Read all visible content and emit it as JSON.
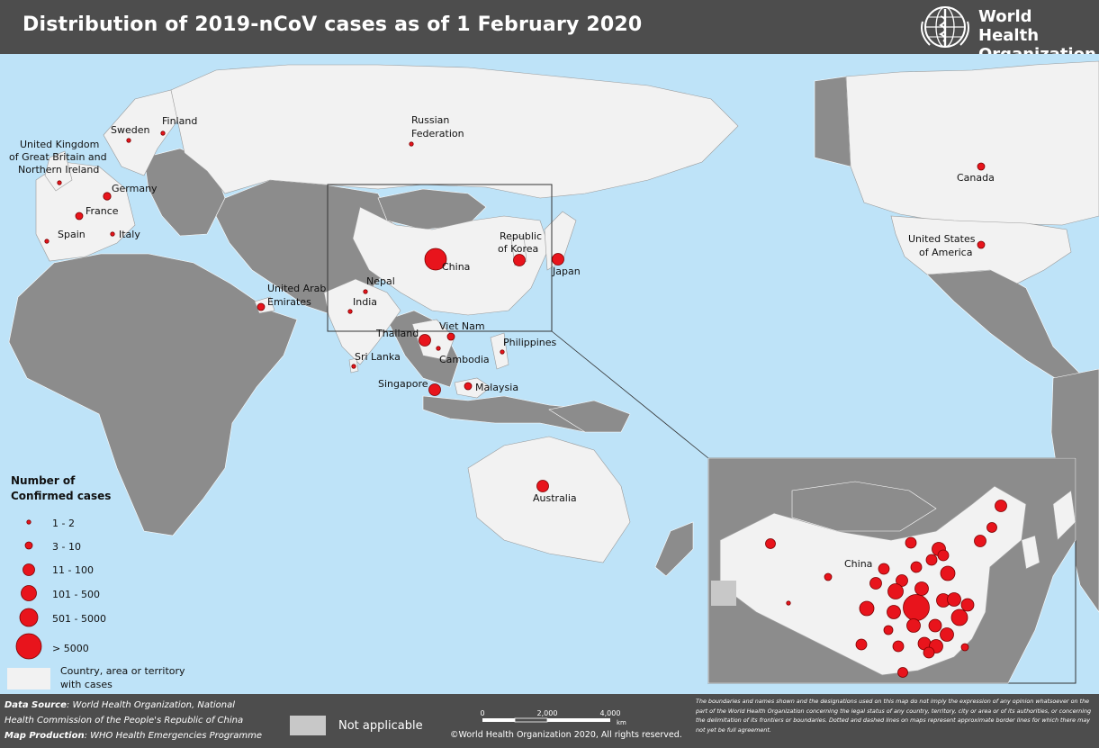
{
  "header": {
    "title": "Distribution of 2019-nCoV cases as of 1 February 2020",
    "org_line1": "World Health",
    "org_line2": "Organization"
  },
  "colors": {
    "ocean": "#bee3f8",
    "cases": "#f2f2f2",
    "no_cases": "#8c8c8c",
    "not_applicable": "#c8c8c8",
    "marker": "#e8141c",
    "header_bg": "#4d4d4d"
  },
  "icons": {
    "logo": "who-emblem-icon",
    "marker": "red-circle-icon"
  },
  "countries": [
    {
      "name": "Finland"
    },
    {
      "name": "Sweden"
    },
    {
      "name": "Russian"
    },
    {
      "name": "Federation"
    },
    {
      "name": "United Kingdom"
    },
    {
      "name": "of Great Britain and"
    },
    {
      "name": "Northern Ireland"
    },
    {
      "name": "Germany"
    },
    {
      "name": "France"
    },
    {
      "name": "Spain"
    },
    {
      "name": "Italy"
    },
    {
      "name": "United Arab"
    },
    {
      "name": "Emirates"
    },
    {
      "name": "Nepal"
    },
    {
      "name": "India"
    },
    {
      "name": "Sri Lanka"
    },
    {
      "name": "China"
    },
    {
      "name": "Republic"
    },
    {
      "name": "of Korea"
    },
    {
      "name": "Japan"
    },
    {
      "name": "Thailand"
    },
    {
      "name": "Viet Nam"
    },
    {
      "name": "Cambodia"
    },
    {
      "name": "Philippines"
    },
    {
      "name": "Singapore"
    },
    {
      "name": "Malaysia"
    },
    {
      "name": "Australia"
    },
    {
      "name": "Canada"
    },
    {
      "name": "United States"
    },
    {
      "name": "of America"
    }
  ],
  "inset": {
    "label": "China"
  },
  "legend": {
    "title_line1": "Number of",
    "title_line2": "Confirmed cases",
    "classes": [
      "1 - 2",
      "3 - 10",
      "11 - 100",
      "101 - 500",
      "501 - 5000",
      "> 5000"
    ],
    "cases_line1": "Country, area or territory",
    "cases_line2": "with cases",
    "not_applicable": "Not applicable"
  },
  "scale": {
    "ticks": [
      "0",
      "2,000",
      "4,000"
    ],
    "unit": "km"
  },
  "footer": {
    "data_source_label": "Data Source",
    "data_source_1": ": World Health Organization, National",
    "data_source_2": "Health Commission of the People's Republic of China",
    "map_production_label": "Map Production",
    "map_production": ": WHO Health Emergencies Programme",
    "copyright": "©World Health Organization 2020, All rights reserved.",
    "disclaimer": "The boundaries and names shown and the designations used on this map do not imply the expression of any opinion whatsoever on the part of the World Health Organization concerning the legal status of any country, territory, city or area or of its authorities, or concerning the delimitation of its frontiers or boundaries. Dotted and dashed lines on maps represent approximate border lines for which there may not yet be full agreement."
  }
}
